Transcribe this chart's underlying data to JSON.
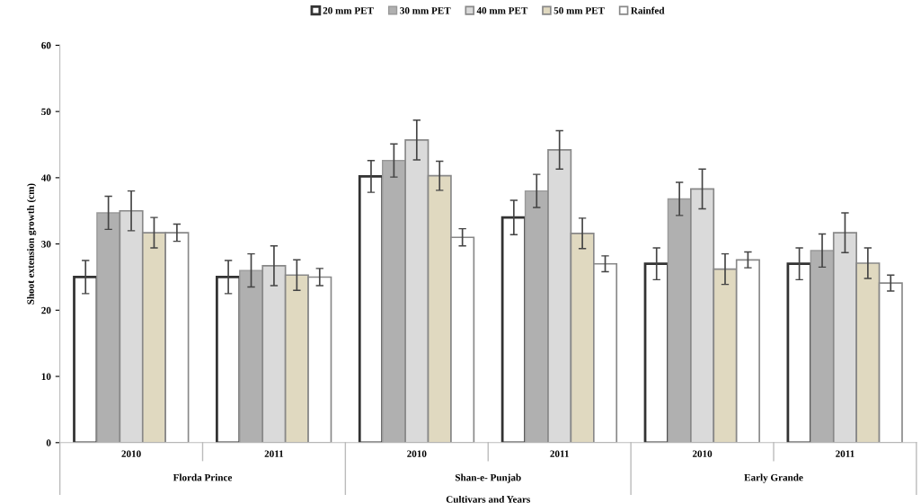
{
  "chart_data": {
    "type": "bar",
    "xlabel": "Cultivars and Years",
    "ylabel": "Shoot extension growth (cm)",
    "categories": [
      "2010",
      "2011",
      "2010",
      "2011",
      "2010",
      "2011"
    ],
    "annotations": [
      "Florda Prince",
      "Shan-e- Punjab",
      "Early Grande"
    ],
    "series": [
      {
        "name": "20 mm PET",
        "color": "#ffffff",
        "values": [
          25,
          25,
          40.2,
          34,
          27,
          27
        ],
        "errors": [
          2.5,
          2.5,
          2.4,
          2.6,
          2.4,
          2.4
        ]
      },
      {
        "name": "30 mm PET",
        "color": "#b0b0b0",
        "values": [
          34.7,
          26,
          42.6,
          38,
          36.8,
          29
        ],
        "errors": [
          2.5,
          2.5,
          2.5,
          2.5,
          2.5,
          2.5
        ]
      },
      {
        "name": "40 mm PET",
        "color": "#dadada",
        "values": [
          35,
          26.7,
          45.7,
          44.2,
          38.3,
          31.7
        ],
        "errors": [
          3,
          3,
          3,
          2.9,
          3,
          3
        ]
      },
      {
        "name": "50 mm PET",
        "color": "#e0d9c0",
        "values": [
          31.7,
          25.3,
          40.3,
          31.6,
          26.2,
          27.1
        ],
        "errors": [
          2.3,
          2.3,
          2.2,
          2.3,
          2.3,
          2.3
        ]
      },
      {
        "name": "Rainfed",
        "color": "#ffffff",
        "values": [
          31.7,
          25,
          31,
          27,
          27.6,
          24.1
        ],
        "errors": [
          1.3,
          1.3,
          1.3,
          1.2,
          1.2,
          1.2
        ]
      }
    ],
    "ylim": [
      0,
      60
    ],
    "yticks": [
      0,
      10,
      20,
      30,
      40,
      50,
      60
    ],
    "grid": false,
    "legend": "top"
  }
}
